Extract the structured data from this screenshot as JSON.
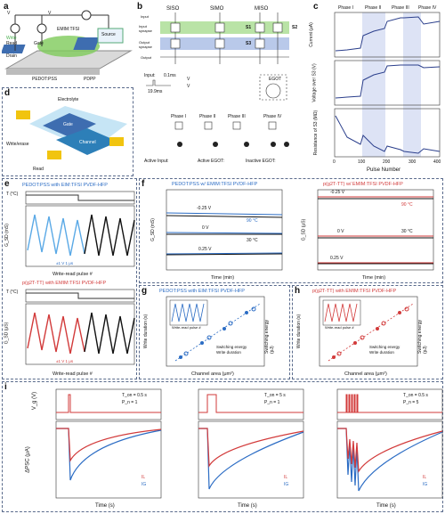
{
  "panel_letters": {
    "a": "a",
    "b": "b",
    "c": "c",
    "d": "d",
    "e": "e",
    "f": "f",
    "g": "g",
    "h": "h",
    "i": "i"
  },
  "panel_a": {
    "labels": {
      "vwrite": "V",
      "vwrite_sub": "wr",
      "vrd": "V",
      "vrd_sub": "rd",
      "electrolyte": "EMIM:TFSI",
      "write": "Write",
      "read": "Read",
      "gate": "Gate",
      "drain": "Drain",
      "source": "Source",
      "pedot": "PEDOT:PSS",
      "pdpp": "PDPP",
      "l": "L",
      "wch": "W"
    }
  },
  "panel_b": {
    "columns": [
      "SISO",
      "SIMO",
      "MISO"
    ],
    "rows": [
      "Input",
      "Input\nsynapse",
      "Output\nsynapse",
      "Output"
    ],
    "labels": {
      "s1": "S1",
      "s2": "S2",
      "s3": "S3",
      "egot": "EGOT",
      "g": "G",
      "d": "D",
      "s": "S",
      "pulse": "Input:",
      "pulse_on": "0.1ms",
      "pulse_off": "19.9ms",
      "von": "V",
      "von_sub": "ON",
      "voff": "V",
      "voff_sub": "OFF"
    },
    "phases": [
      "Phase I",
      "Phase II",
      "Phase III",
      "Phase IV"
    ],
    "legend": {
      "active_input": "Active Input:",
      "active_egot": "Active EGOT:",
      "inactive_egot": "Inactive EGOT:"
    }
  },
  "panel_c": {
    "phases": [
      "Phase I",
      "Phase II",
      "Phase III",
      "Phase IV"
    ],
    "ylabels": [
      "Current (μA)",
      "Voltage over S3 (V)",
      "Resistance of S3 (MΩ)"
    ],
    "xlabel": "Pulse Number",
    "xticks": [
      "0",
      "50",
      "100",
      "150",
      "200",
      "250",
      "300",
      "350",
      "400"
    ],
    "y1ticks": [
      "0",
      "-1",
      "-2",
      "-3"
    ],
    "y2ticks": [
      "-0.5",
      "-0.4",
      "-0.3",
      "-0.2"
    ],
    "y3ticks": [
      "0",
      "1",
      "2",
      "3"
    ]
  },
  "panel_d": {
    "labels": {
      "electrolyte": "Electrolyte",
      "gate": "Gate",
      "channel": "Channel",
      "g": "G",
      "d": "D",
      "s": "S",
      "writeerase": "Write/erase",
      "read": "Read",
      "vgs": "V",
      "vsd": "V",
      "isd": "I"
    }
  },
  "panel_e": {
    "title_top": "PEDOT:PSS with EIM:TFSI PVDF-HFP",
    "title_bottom": "p(g2T-TT) with EMIM:TFSI PVDF-HFP",
    "xlabel": "Write-read pulse #",
    "xticks": [
      "0",
      "200",
      "1×10⁶",
      "2.1×10⁶"
    ],
    "ylabel_t": "T (°C)",
    "ylabel_g_top": "G_SD (mS)",
    "ylabel_g_bottom": "G_SD (μS)",
    "t_ticks": [
      "90",
      "60",
      "30"
    ],
    "g_ticks_top": [
      "5.0",
      "4.5",
      "4.0",
      "3.5",
      "3.0",
      "2.5"
    ],
    "g_ticks_bottom": [
      "5",
      "4",
      "3",
      "2",
      "1",
      "0"
    ],
    "pulse_top": "±1 V 1 μs",
    "pulse_bottom": "±1 V 1 μs"
  },
  "panel_f": {
    "title_left": "PEDOT:PSS w/ EMIM:TFSI PVDF-HFP",
    "title_right": "p(g2T-TT) w/ EMIM:TFSI PVDF-HFP",
    "xlabel": "Time (min)",
    "xticks": [
      "0",
      "1",
      "2",
      "3",
      "4",
      "5"
    ],
    "ylabel_left": "G_SD (mS)",
    "ylabel_right": "G_SD (μS)",
    "yticks_left": [
      "3.4",
      "3.2",
      "3.0"
    ],
    "yticks_right": [
      "40",
      "30",
      "20",
      "10"
    ],
    "left_series": [
      "-0.25 V",
      "0 V",
      "0.25 V"
    ],
    "right_series": [
      "-0.25 V",
      "0 V",
      "0.25 V"
    ],
    "temps": [
      "90 °C",
      "30 °C"
    ]
  },
  "panel_g": {
    "title": "PEDOT:PSS with EIM:TFSI PVDF-HFP",
    "xlabel": "Channel area (μm²)",
    "ylabel_left": "Write duration (s)",
    "ylabel_right": "Switching energy (pJ)",
    "legend": [
      "Switching energy",
      "Write duration"
    ],
    "inset_xlabel": "Write-read pulse #",
    "inset_ylabel": "G_SD (mS)",
    "inset_legend": "20 × 20 μm²",
    "xticks": [
      "10¹",
      "10²",
      "10³",
      "10⁴",
      "10⁵"
    ],
    "yticks_left": [
      "10⁻³",
      "10⁻⁵",
      "10⁻⁷"
    ],
    "yticks_right": [
      "100",
      "1",
      "0.01"
    ]
  },
  "panel_h": {
    "title": "p(g2T-TT) with EMIM:TFSI PVDF-HFP",
    "xlabel": "Channel area (μm²)",
    "ylabel_left": "Write duration (s)",
    "ylabel_right": "Switching energy (pJ)",
    "legend": [
      "Switching energy",
      "Write duration"
    ],
    "inset_xlabel": "Write-read pulse #",
    "inset_ylabel": "G_SD (μS)",
    "inset_legend": "20 × 20 μm²",
    "xticks": [
      "10¹",
      "10²",
      "10³",
      "10⁴",
      "10⁵"
    ],
    "yticks_left": [
      "10⁻³",
      "10⁻⁵",
      "10⁻⁷"
    ],
    "yticks_right": [
      "100",
      "1",
      "0.01"
    ]
  },
  "panel_i": {
    "ylabel_top": "V_g (V)",
    "ylabel_bottom": "ΔPSC (μA)",
    "xlabel": "Time (s)",
    "xticks": [
      "0",
      "10",
      "20",
      "30",
      "40",
      "50"
    ],
    "yticks_top": [
      "1",
      "0"
    ],
    "yticks_bottom": [
      "0",
      "200",
      "400",
      "600"
    ],
    "subplots": [
      {
        "ton": "T_on = 0.5 s",
        "pn": "P_n = 1"
      },
      {
        "ton": "T_on = 5 s",
        "pn": "P_n = 1"
      },
      {
        "ton": "T_on = 0.5 s",
        "pn": "P_n = 5"
      }
    ],
    "legend": [
      "IL",
      "IG"
    ]
  },
  "colors": {
    "blue": "#2b6cc4",
    "lightblue": "#5aa9e6",
    "red": "#d23a3a",
    "black": "#111111",
    "green": "#6cbf4a",
    "accent": "#3b5aa5"
  }
}
